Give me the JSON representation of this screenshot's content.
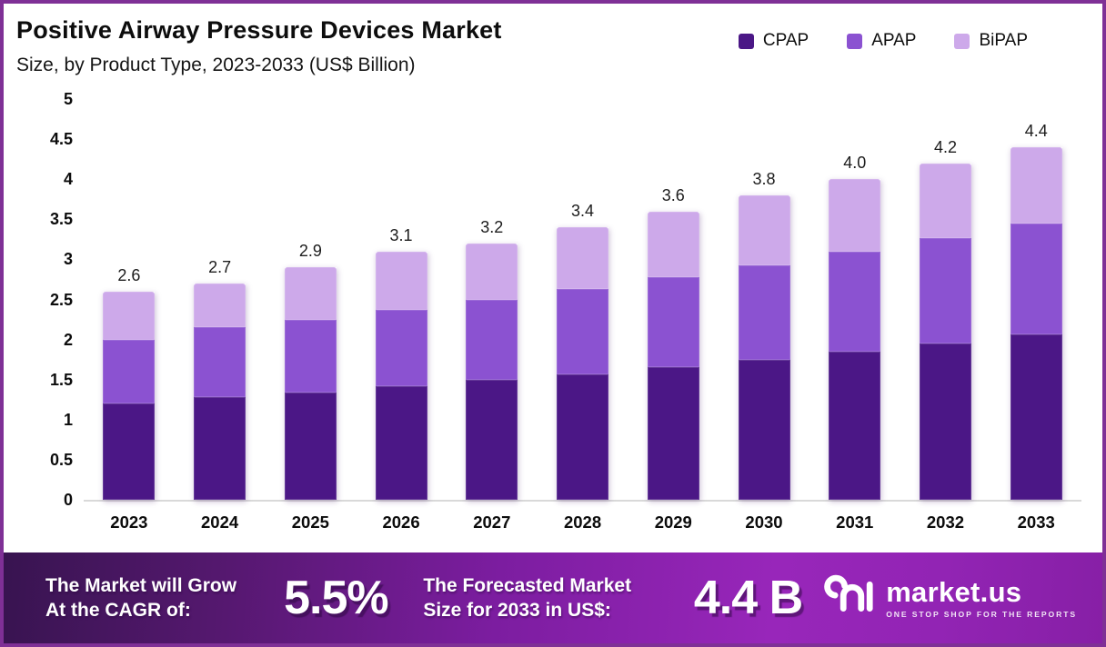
{
  "header": {
    "title": "Positive Airway Pressure Devices Market",
    "subtitle": "Size, by Product Type, 2023-2033 (US$ Billion)"
  },
  "legend": [
    {
      "label": "CPAP",
      "color": "#4b1786"
    },
    {
      "label": "APAP",
      "color": "#8b52d1"
    },
    {
      "label": "BiPAP",
      "color": "#cda9ea"
    }
  ],
  "chart_data": {
    "type": "bar",
    "stacked": true,
    "title": "Positive Airway Pressure Devices Market Size, by Product Type, 2023-2033 (US$ Billion)",
    "categories": [
      "2023",
      "2024",
      "2025",
      "2026",
      "2027",
      "2028",
      "2029",
      "2030",
      "2031",
      "2032",
      "2033"
    ],
    "series": [
      {
        "name": "CPAP",
        "color": "#4b1786",
        "values": [
          1.2,
          1.28,
          1.34,
          1.42,
          1.5,
          1.57,
          1.66,
          1.75,
          1.85,
          1.95,
          2.06
        ]
      },
      {
        "name": "APAP",
        "color": "#8b52d1",
        "values": [
          0.8,
          0.87,
          0.9,
          0.95,
          1.0,
          1.06,
          1.12,
          1.18,
          1.25,
          1.31,
          1.39
        ]
      },
      {
        "name": "BiPAP",
        "color": "#cda9ea",
        "values": [
          0.6,
          0.55,
          0.66,
          0.73,
          0.7,
          0.77,
          0.82,
          0.87,
          0.9,
          0.94,
          0.95
        ]
      }
    ],
    "totals": [
      "2.6",
      "2.7",
      "2.9",
      "3.1",
      "3.2",
      "3.4",
      "3.6",
      "3.8",
      "4.0",
      "4.2",
      "4.4"
    ],
    "yticks": [
      "0",
      "0.5",
      "1",
      "1.5",
      "2",
      "2.5",
      "3",
      "3.5",
      "4",
      "4.5",
      "5"
    ],
    "ylim": [
      0,
      5
    ],
    "xlabel": "",
    "ylabel": "US$ Billion",
    "grid": false,
    "legend_position": "top-right"
  },
  "banner": {
    "cagr_label_line1": "The Market will Grow",
    "cagr_label_line2": "At the CAGR of:",
    "cagr_value": "5.5%",
    "forecast_label_line1": "The Forecasted Market",
    "forecast_label_line2": "Size for 2033 in US$:",
    "forecast_value": "4.4 B",
    "brand": {
      "name": "market.us",
      "tagline": "ONE STOP SHOP FOR THE REPORTS"
    }
  },
  "colors": {
    "frame_border": "#7f3096",
    "banner_gradient_start": "#381450",
    "banner_gradient_end": "#9826ba",
    "axis_line": "#d9d9d9"
  }
}
